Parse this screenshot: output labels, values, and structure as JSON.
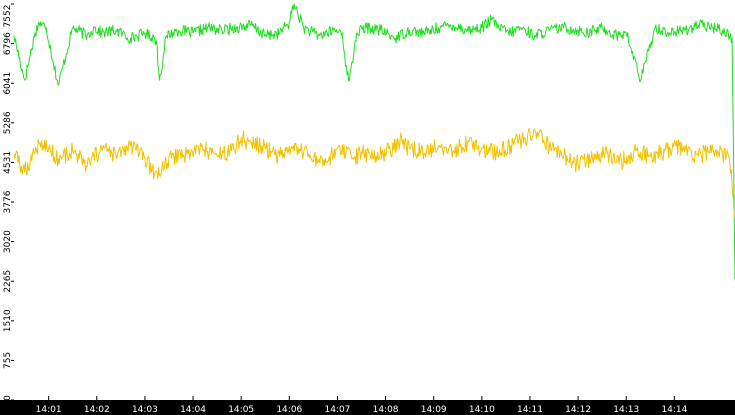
{
  "chart_data": {
    "type": "line",
    "title": "",
    "xlabel": "",
    "ylabel": "",
    "x_ticks": [
      "14:01",
      "14:02",
      "14:03",
      "14:04",
      "14:05",
      "14:06",
      "14:07",
      "14:08",
      "14:09",
      "14:10",
      "14:11",
      "14:12",
      "14:13",
      "14:14"
    ],
    "y_ticks": [
      "0",
      "755",
      "1510",
      "2265",
      "3020",
      "3776",
      "4531",
      "5286",
      "6041",
      "6796",
      "7552"
    ],
    "ylim": [
      0,
      7552
    ],
    "xlim_minutes": [
      0.28,
      15.26
    ],
    "grid": false,
    "series": [
      {
        "color": "#22dd22",
        "x": [
          0.28,
          0.5,
          0.72,
          0.8,
          0.95,
          1.2,
          1.5,
          1.8,
          1.95,
          2.1,
          2.4,
          2.7,
          3.0,
          3.2,
          3.24,
          3.3,
          3.45,
          3.7,
          4.0,
          4.3,
          4.6,
          4.9,
          5.2,
          5.5,
          5.8,
          6.0,
          6.1,
          6.3,
          6.6,
          6.95,
          7.1,
          7.2,
          7.25,
          7.4,
          7.6,
          7.9,
          8.2,
          8.5,
          8.8,
          9.1,
          9.4,
          9.7,
          10.0,
          10.2,
          10.35,
          10.6,
          10.8,
          11.1,
          11.4,
          11.7,
          12.0,
          12.2,
          12.5,
          12.8,
          13.0,
          13.3,
          13.6,
          13.9,
          14.2,
          14.5,
          14.8,
          15.0,
          15.2,
          15.26
        ],
        "values": [
          6950,
          6100,
          7000,
          7200,
          7100,
          6000,
          7100,
          6950,
          7100,
          7000,
          7050,
          6900,
          7000,
          6900,
          6850,
          6100,
          6950,
          7050,
          7000,
          7100,
          7050,
          7100,
          7150,
          6950,
          7000,
          7200,
          7550,
          7100,
          6950,
          7050,
          7000,
          6200,
          6100,
          7000,
          7100,
          7050,
          6900,
          7050,
          7000,
          7100,
          7150,
          7050,
          7100,
          7250,
          7100,
          7000,
          7100,
          6950,
          7050,
          7100,
          7050,
          7000,
          7100,
          6950,
          7000,
          6100,
          7100,
          7000,
          7050,
          7150,
          7100,
          7050,
          6900,
          2300
        ]
      },
      {
        "color": "#f2c200",
        "x": [
          0.28,
          0.5,
          0.8,
          1.0,
          1.2,
          1.5,
          1.8,
          2.1,
          2.4,
          2.7,
          3.0,
          3.2,
          3.35,
          3.6,
          3.9,
          4.2,
          4.5,
          4.8,
          5.0,
          5.2,
          5.5,
          5.8,
          6.1,
          6.4,
          6.7,
          7.0,
          7.3,
          7.55,
          7.8,
          8.1,
          8.3,
          8.5,
          8.8,
          9.1,
          9.4,
          9.7,
          10.0,
          10.3,
          10.6,
          10.9,
          11.1,
          11.3,
          11.5,
          11.7,
          12.0,
          12.3,
          12.6,
          12.9,
          13.2,
          13.5,
          13.8,
          14.1,
          14.4,
          14.7,
          15.0,
          15.15,
          15.26
        ],
        "values": [
          4700,
          4350,
          4900,
          4800,
          4600,
          4750,
          4450,
          4800,
          4650,
          4850,
          4600,
          4300,
          4400,
          4650,
          4700,
          4800,
          4650,
          4750,
          5000,
          4900,
          4800,
          4650,
          4750,
          4700,
          4450,
          4800,
          4600,
          4700,
          4650,
          4750,
          4950,
          4800,
          4700,
          4850,
          4750,
          4900,
          4800,
          4700,
          4850,
          5000,
          5150,
          4900,
          4750,
          4650,
          4500,
          4600,
          4700,
          4550,
          4750,
          4650,
          4750,
          4850,
          4600,
          4750,
          4700,
          4550,
          3500
        ]
      }
    ]
  }
}
